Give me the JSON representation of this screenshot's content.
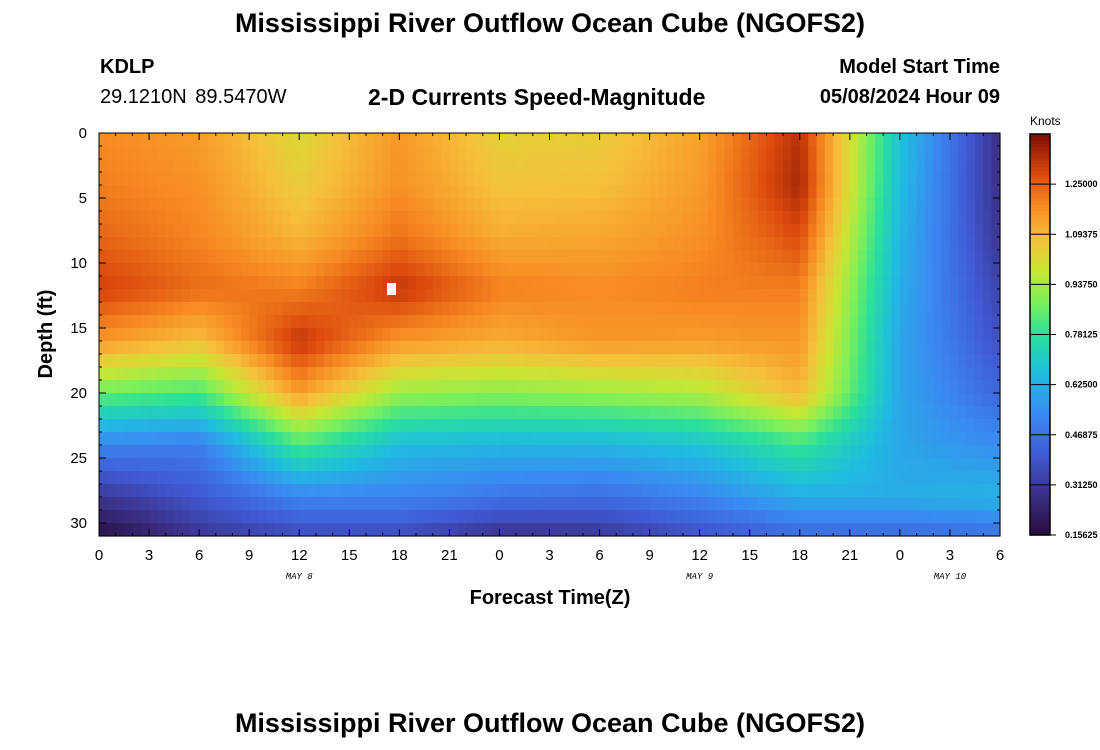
{
  "header": {
    "title": "Mississippi River Outflow Ocean Cube (NGOFS2)",
    "station_id": "KDLP",
    "station_coords": "29.1210N  89.5470W",
    "subtitle": "2-D Currents Speed-Magnitude",
    "model_start_label": "Model Start Time",
    "model_start_value": "05/08/2024 Hour 09"
  },
  "footer": {
    "title": "Mississippi River Outflow Ocean Cube (NGOFS2)"
  },
  "chart_data": {
    "type": "heatmap",
    "title": "2-D Currents Speed-Magnitude",
    "xlabel": "Forecast Time(Z)",
    "ylabel": "Depth (ft)",
    "x_range_hours": [
      0,
      54
    ],
    "x_ticks": [
      0,
      3,
      6,
      9,
      12,
      15,
      18,
      21,
      24,
      27,
      30,
      33,
      36,
      39,
      42,
      45,
      48,
      51,
      54
    ],
    "x_tick_labels": [
      "0",
      "3",
      "6",
      "9",
      "12",
      "15",
      "18",
      "21",
      "0",
      "3",
      "6",
      "9",
      "12",
      "15",
      "18",
      "21",
      "0",
      "3",
      "6"
    ],
    "date_labels": [
      {
        "hour": 12,
        "text": "MAY 8"
      },
      {
        "hour": 36,
        "text": "MAY 9"
      },
      {
        "hour": 51,
        "text": "MAY 10"
      }
    ],
    "ylim": [
      0,
      31
    ],
    "y_ticks": [
      0,
      5,
      10,
      15,
      20,
      25,
      30
    ],
    "y_tick_labels": [
      "0",
      "5",
      "10",
      "15",
      "20",
      "25",
      "30"
    ],
    "colorbar": {
      "unit": "Knots",
      "min": 0.15625,
      "max": 1.40625,
      "ticks": [
        {
          "value": 0.15625,
          "label": "0.15625"
        },
        {
          "value": 0.3125,
          "label": "0.31250"
        },
        {
          "value": 0.46875,
          "label": "0.46875"
        },
        {
          "value": 0.625,
          "label": "0.62500"
        },
        {
          "value": 0.78125,
          "label": "0.78125"
        },
        {
          "value": 0.9375,
          "label": "0.93750"
        },
        {
          "value": 1.09375,
          "label": "1.09375"
        },
        {
          "value": 1.25,
          "label": "1.25000"
        }
      ]
    },
    "grid_hours": [
      0,
      6,
      12,
      18,
      24,
      30,
      36,
      42,
      48,
      54
    ],
    "grid_depths": [
      0,
      4,
      8,
      12,
      16,
      20,
      24,
      28,
      31
    ],
    "speed_knots": [
      [
        1.18,
        1.15,
        1.02,
        1.16,
        1.04,
        1.05,
        1.14,
        1.33,
        0.68,
        0.28
      ],
      [
        1.2,
        1.17,
        1.05,
        1.17,
        1.07,
        1.08,
        1.15,
        1.35,
        0.66,
        0.28
      ],
      [
        1.24,
        1.19,
        1.1,
        1.22,
        1.12,
        1.13,
        1.17,
        1.28,
        0.64,
        0.3
      ],
      [
        1.3,
        1.23,
        1.2,
        1.32,
        1.2,
        1.18,
        1.2,
        1.2,
        0.62,
        0.34
      ],
      [
        1.16,
        1.08,
        1.32,
        1.16,
        1.12,
        1.16,
        1.15,
        1.16,
        0.6,
        0.38
      ],
      [
        0.86,
        0.82,
        1.15,
        0.92,
        0.9,
        0.92,
        0.95,
        1.1,
        0.6,
        0.44
      ],
      [
        0.52,
        0.5,
        0.82,
        0.66,
        0.64,
        0.64,
        0.68,
        0.8,
        0.6,
        0.54
      ],
      [
        0.3,
        0.4,
        0.52,
        0.52,
        0.48,
        0.46,
        0.52,
        0.62,
        0.62,
        0.64
      ],
      [
        0.16,
        0.3,
        0.36,
        0.36,
        0.28,
        0.3,
        0.38,
        0.44,
        0.44,
        0.46
      ]
    ],
    "masked_cells": [
      {
        "hour": 17.5,
        "depth": 12,
        "note": "no data"
      }
    ]
  }
}
